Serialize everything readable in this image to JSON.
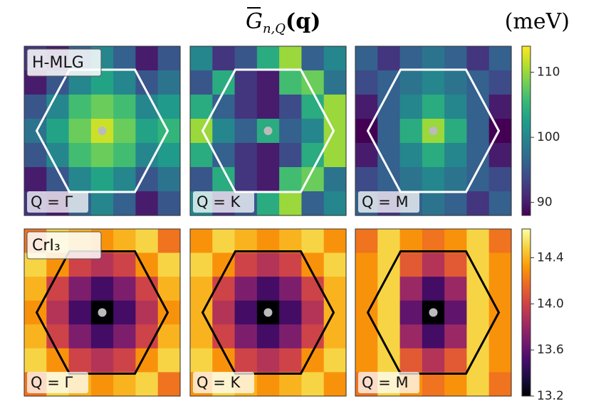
{
  "title": {
    "symbol": "G",
    "subscript": "n,Q",
    "argument": "(q)"
  },
  "unit": "(meV)",
  "chart_data": [
    {
      "type": "heatmap",
      "label": "H-MLG",
      "zlim": [
        88,
        114
      ],
      "zticks": [
        90,
        100,
        110
      ],
      "colormap": [
        "#440154",
        "#482878",
        "#3e4989",
        "#31688e",
        "#26828e",
        "#1f9e89",
        "#35b779",
        "#6ece58",
        "#b5de2b",
        "#fde725"
      ],
      "hexagon_color": "#ffffff",
      "panels": [
        {
          "annotation": "Q = Γ",
          "values": [
            [
              92,
              90,
              96,
              100,
              96,
              90,
              95
            ],
            [
              90,
              95,
              100,
              103,
              100,
              95,
              98
            ],
            [
              95,
              100,
              106,
              108,
              106,
              100,
              102
            ],
            [
              98,
              103,
              108,
              112,
              108,
              103,
              105
            ],
            [
              95,
              100,
              106,
              108,
              106,
              100,
              102
            ],
            [
              90,
              95,
              100,
              103,
              100,
              95,
              98
            ],
            [
              92,
              90,
              96,
              100,
              96,
              90,
              95
            ]
          ]
        },
        {
          "annotation": "Q = K",
          "values": [
            [
              100,
              92,
              95,
              104,
              110,
              96,
              100
            ],
            [
              95,
              104,
              92,
              90,
              106,
              108,
              98
            ],
            [
              104,
              96,
              92,
              90,
              94,
              104,
              110
            ],
            [
              110,
              100,
              96,
              104,
              96,
              100,
              110
            ],
            [
              104,
              96,
              92,
              90,
              94,
              104,
              110
            ],
            [
              95,
              104,
              92,
              90,
              106,
              108,
              98
            ],
            [
              100,
              92,
              95,
              104,
              110,
              96,
              100
            ]
          ]
        },
        {
          "annotation": "Q = M",
          "values": [
            [
              96,
              92,
              96,
              98,
              96,
              92,
              96
            ],
            [
              94,
              96,
              98,
              100,
              98,
              96,
              94
            ],
            [
              90,
              96,
              100,
              104,
              100,
              96,
              90
            ],
            [
              88,
              96,
              104,
              110,
              104,
              96,
              88
            ],
            [
              90,
              96,
              100,
              104,
              100,
              96,
              90
            ],
            [
              94,
              96,
              98,
              100,
              98,
              96,
              94
            ],
            [
              96,
              92,
              96,
              98,
              96,
              92,
              96
            ]
          ]
        }
      ]
    },
    {
      "type": "heatmap",
      "label": "CrI₃",
      "zlim": [
        13.2,
        14.65
      ],
      "zticks": [
        13.2,
        13.6,
        {
          "value": 14,
          "label": "14.0"
        },
        14.4
      ],
      "colormap": [
        "#000004",
        "#1b0c41",
        "#4a0c6b",
        "#781c6d",
        "#a52c60",
        "#cf4446",
        "#ed6925",
        "#fb9b06",
        "#f7d13d",
        "#fcffa4"
      ],
      "hexagon_color": "#000000",
      "panels": [
        {
          "annotation": "Q = Γ",
          "values": [
            [
              14.2,
              14.5,
              14.4,
              14.3,
              14.4,
              14.5,
              14.2
            ],
            [
              14.5,
              14.3,
              14.0,
              13.9,
              14.0,
              14.3,
              14.5
            ],
            [
              14.4,
              14.0,
              13.7,
              13.5,
              13.7,
              14.0,
              14.4
            ],
            [
              14.3,
              13.9,
              13.5,
              13.2,
              13.5,
              13.9,
              14.3
            ],
            [
              14.4,
              14.0,
              13.7,
              13.5,
              13.7,
              14.0,
              14.4
            ],
            [
              14.5,
              14.3,
              14.0,
              13.9,
              14.0,
              14.3,
              14.5
            ],
            [
              14.2,
              14.5,
              14.4,
              14.3,
              14.4,
              14.5,
              14.2
            ]
          ]
        },
        {
          "annotation": "Q = K",
          "values": [
            [
              14.3,
              14.5,
              14.4,
              14.3,
              14.4,
              14.5,
              14.3
            ],
            [
              14.5,
              14.3,
              14.0,
              13.9,
              14.0,
              14.3,
              14.5
            ],
            [
              14.4,
              14.0,
              13.7,
              13.5,
              13.7,
              14.0,
              14.4
            ],
            [
              14.4,
              13.9,
              13.5,
              13.2,
              13.5,
              13.9,
              14.4
            ],
            [
              14.4,
              14.0,
              13.7,
              13.5,
              13.7,
              14.0,
              14.4
            ],
            [
              14.5,
              14.3,
              14.0,
              13.9,
              14.0,
              14.3,
              14.5
            ],
            [
              14.3,
              14.5,
              14.4,
              14.3,
              14.4,
              14.5,
              14.3
            ]
          ]
        },
        {
          "annotation": "Q = M",
          "values": [
            [
              14.2,
              14.5,
              14.3,
              14.2,
              14.3,
              14.5,
              14.2
            ],
            [
              14.3,
              14.5,
              14.1,
              13.9,
              14.1,
              14.5,
              14.3
            ],
            [
              14.3,
              14.5,
              13.8,
              13.5,
              13.8,
              14.5,
              14.3
            ],
            [
              14.3,
              14.5,
              13.6,
              13.2,
              13.6,
              14.5,
              14.3
            ],
            [
              14.3,
              14.5,
              13.8,
              13.5,
              13.8,
              14.5,
              14.3
            ],
            [
              14.3,
              14.5,
              14.1,
              13.9,
              14.1,
              14.5,
              14.3
            ],
            [
              14.2,
              14.5,
              14.3,
              14.2,
              14.3,
              14.5,
              14.2
            ]
          ]
        }
      ]
    }
  ]
}
